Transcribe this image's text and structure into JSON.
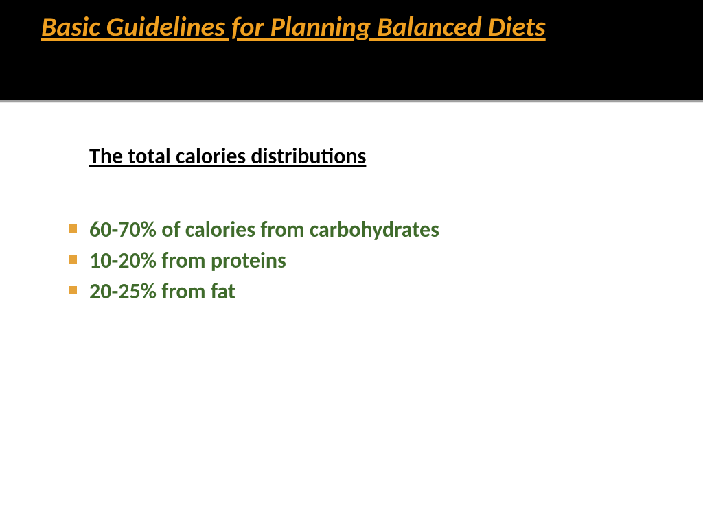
{
  "title": {
    "text": "Basic Guidelines for Planning Balanced Diets",
    "color": "#f0a020",
    "background": "#000000",
    "fontSize": 40
  },
  "divider": {
    "topColor": "#a0a0a0",
    "bottomColor": "#e8e8e8",
    "thickness": 2
  },
  "subhead": {
    "text": "The total calories distributions",
    "color": "#000000",
    "fontSize": 32
  },
  "bullet": {
    "color": "#e5a33a",
    "size": 12
  },
  "listText": {
    "color": "#3f6b2b",
    "fontSize": 32
  },
  "items": [
    "60-70% of calories from carbohydrates",
    "10-20% from proteins",
    "20-25% from fat"
  ],
  "background": "#ffffff"
}
